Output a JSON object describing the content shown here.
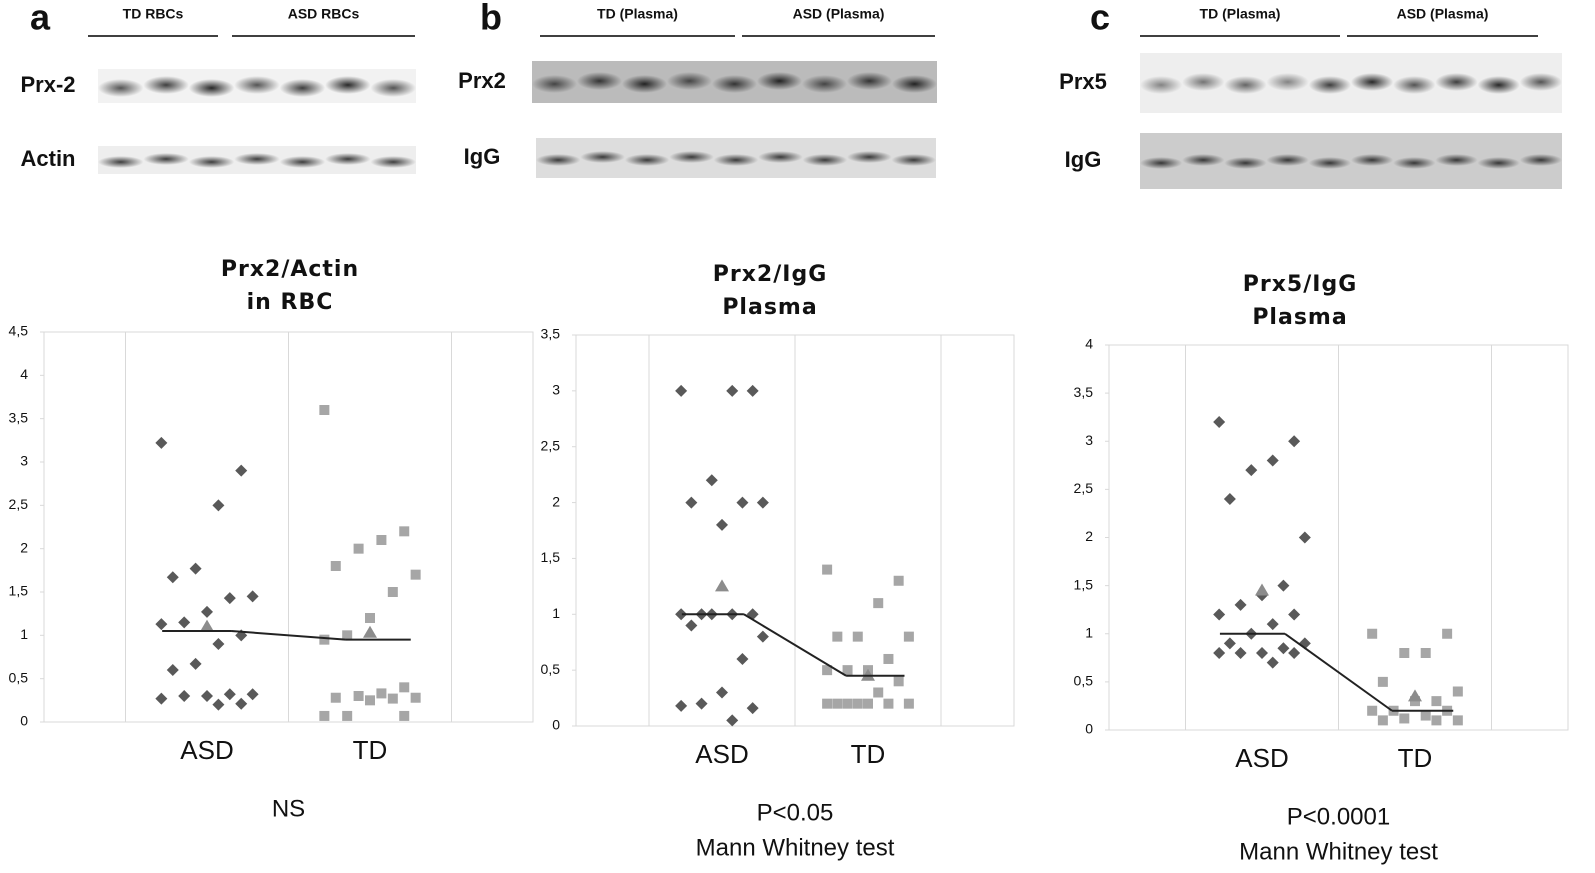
{
  "panels": [
    {
      "letter": "a",
      "groups": [
        "TD RBCs",
        "ASD RBCs"
      ],
      "rows": [
        "Prx-2",
        "Actin"
      ]
    },
    {
      "letter": "b",
      "groups": [
        "TD (Plasma)",
        "ASD (Plasma)"
      ],
      "rows": [
        "Prx2",
        "IgG"
      ]
    },
    {
      "letter": "c",
      "groups": [
        "TD (Plasma)",
        "ASD (Plasma)"
      ],
      "rows": [
        "Prx5",
        "IgG"
      ]
    }
  ],
  "chart_data": [
    {
      "type": "strip",
      "title": [
        "Prx2/Actin",
        "in RBC"
      ],
      "categories": [
        "ASD",
        "TD"
      ],
      "series": [
        {
          "color": "#595959",
          "marker": "diamond",
          "values": [
            3.22,
            2.9,
            2.5,
            1.77,
            1.67,
            1.45,
            1.43,
            1.27,
            1.15,
            1.13,
            1.0,
            0.9,
            0.67,
            0.6,
            0.32,
            0.32,
            0.3,
            0.3,
            0.27,
            0.21,
            0.2
          ]
        },
        {
          "color": "#a6a6a6",
          "marker": "square",
          "values": [
            3.6,
            2.2,
            2.1,
            2.0,
            1.8,
            1.7,
            1.5,
            1.2,
            1.0,
            0.95,
            0.4,
            0.33,
            0.3,
            0.28,
            0.28,
            0.27,
            0.25,
            0.07,
            0.07,
            0.07
          ]
        }
      ],
      "means": [
        1.1,
        1.03
      ],
      "medians": [
        1.05,
        0.95
      ],
      "ylim": [
        0,
        4.5
      ],
      "yticks": [
        0,
        {
          "value": 0.5,
          "label": "0,5"
        },
        1,
        {
          "value": 1.5,
          "label": "1,5"
        },
        2,
        {
          "value": 2.5,
          "label": "2,5"
        },
        3,
        {
          "value": 3.5,
          "label": "3,5"
        },
        4,
        {
          "value": 4.5,
          "label": "4,5"
        }
      ],
      "notes": [
        "NS"
      ]
    },
    {
      "type": "strip",
      "title": [
        "Prx2/IgG",
        "Plasma"
      ],
      "categories": [
        "ASD",
        "TD"
      ],
      "series": [
        {
          "color": "#595959",
          "marker": "diamond",
          "values": [
            3,
            3,
            3,
            2.2,
            2.0,
            2.0,
            2.0,
            1.8,
            1.0,
            1.0,
            1.0,
            1.0,
            1.0,
            0.9,
            0.8,
            0.6,
            0.3,
            0.2,
            0.18,
            0.16,
            0.05
          ]
        },
        {
          "color": "#a6a6a6",
          "marker": "square",
          "values": [
            1.4,
            1.3,
            1.1,
            0.8,
            0.8,
            0.8,
            0.6,
            0.5,
            0.5,
            0.5,
            0.4,
            0.3,
            0.2,
            0.2,
            0.2,
            0.2,
            0.2,
            0.2,
            0.2
          ]
        }
      ],
      "means": [
        1.25,
        0.45
      ],
      "medians": [
        1.0,
        0.45
      ],
      "ylim": [
        0,
        3.5
      ],
      "yticks": [
        0,
        {
          "value": 0.5,
          "label": "0,5"
        },
        1,
        {
          "value": 1.5,
          "label": "1,5"
        },
        2,
        {
          "value": 2.5,
          "label": "2,5"
        },
        3,
        {
          "value": 3.5,
          "label": "3,5"
        }
      ],
      "notes": [
        "P<0.05",
        "Mann Whitney test"
      ]
    },
    {
      "type": "strip",
      "title": [
        "Prx5/IgG",
        "Plasma"
      ],
      "categories": [
        "ASD",
        "TD"
      ],
      "series": [
        {
          "color": "#595959",
          "marker": "diamond",
          "values": [
            3.2,
            3.0,
            2.8,
            2.7,
            2.4,
            2.0,
            1.5,
            1.4,
            1.3,
            1.2,
            1.2,
            1.1,
            1.0,
            0.9,
            0.9,
            0.85,
            0.8,
            0.8,
            0.8,
            0.8,
            0.7
          ]
        },
        {
          "color": "#a6a6a6",
          "marker": "square",
          "values": [
            1.0,
            1.0,
            0.8,
            0.8,
            0.5,
            0.4,
            0.3,
            0.3,
            0.2,
            0.2,
            0.2,
            0.15,
            0.12,
            0.1,
            0.1,
            0.1
          ]
        }
      ],
      "means": [
        1.45,
        0.35
      ],
      "medians": [
        1.0,
        0.2
      ],
      "ylim": [
        0,
        4
      ],
      "yticks": [
        0,
        {
          "value": 0.5,
          "label": "0,5"
        },
        1,
        {
          "value": 1.5,
          "label": "1,5"
        },
        2,
        {
          "value": 2.5,
          "label": "2,5"
        },
        3,
        {
          "value": 3.5,
          "label": "3,5"
        },
        4
      ],
      "notes": [
        "P<0.0001",
        "Mann Whitney test"
      ]
    }
  ]
}
